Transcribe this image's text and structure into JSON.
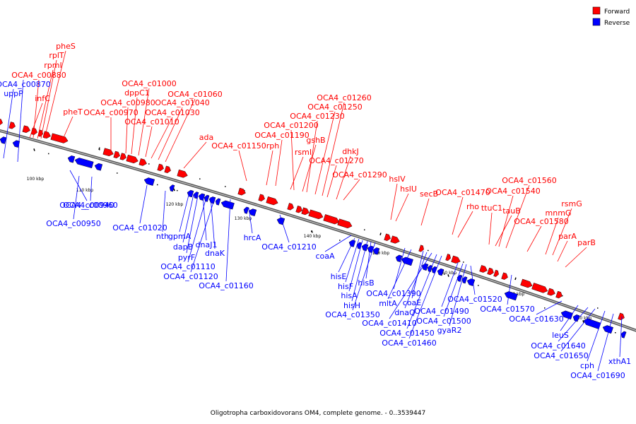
{
  "caption": "Oligotropha carboxidovorans OM4, complete genome. - 0..3539447",
  "legend": [
    {
      "label": "Forward",
      "color": "#ff0000"
    },
    {
      "label": "Reverse",
      "color": "#0000ff"
    }
  ],
  "colors": {
    "forward": "#ff0000",
    "reverse": "#0000ff",
    "backbone": "#808080"
  },
  "ticks": [
    "100 kbp",
    "110 kbp",
    "120 kbp",
    "130 kbp",
    "140 kbp",
    "150 kbp",
    "160 kbp",
    "170 kbp",
    "180 kbp"
  ],
  "forward_genes": [
    "pheS",
    "rplT",
    "rpmI",
    "OCA4_c00880",
    "infC",
    "pheT",
    "OCA4_c01000",
    "dppC1",
    "OCA4_c00980",
    "OCA4_c00970",
    "OCA4_c01060",
    "OCA4_c01040",
    "OCA4_c01030",
    "OCA4_c01010",
    "ada",
    "OCA4_c01150",
    "OCA4_c01260",
    "OCA4_c01250",
    "OCA4_c01230",
    "OCA4_c01200",
    "OCA4_c01190",
    "rph",
    "gshB",
    "rsmI",
    "dhkJ",
    "OCA4_c01270",
    "OCA4_c01290",
    "hslV",
    "hslU",
    "secB",
    "OCA4_c01470",
    "rho",
    "OCA4_c01560",
    "OCA4_c01540",
    "ttuC1",
    "tauB",
    "rsmG",
    "mnmG",
    "OCA4_c01580",
    "parA",
    "parB"
  ],
  "reverse_genes": [
    "OCA4_c00870",
    "uppP",
    "OCA4_c00940",
    "OCA4_c00960",
    "OCA4_c00950",
    "OCA4_c01020",
    "nth",
    "gpmA",
    "dapB",
    "dnaJ1",
    "pyrF",
    "dnaK",
    "OCA4_c01110",
    "OCA4_c01120",
    "OCA4_c01160",
    "hrcA",
    "OCA4_c01210",
    "coaA",
    "hisE",
    "hisF",
    "hisB",
    "hisA",
    "hisH",
    "OCA4_c01350",
    "OCA4_c01390",
    "mltA",
    "coaE",
    "dnaQ",
    "OCA4_c01410",
    "OCA4_c01450",
    "OCA4_c01460",
    "OCA4_c01490",
    "OCA4_c01500",
    "gyaR2",
    "OCA4_c01520",
    "OCA4_c01570",
    "OCA4_c01630",
    "leuS",
    "OCA4_c01640",
    "OCA4_c01650",
    "cph",
    "OCA4_c01690",
    "xthA1"
  ]
}
